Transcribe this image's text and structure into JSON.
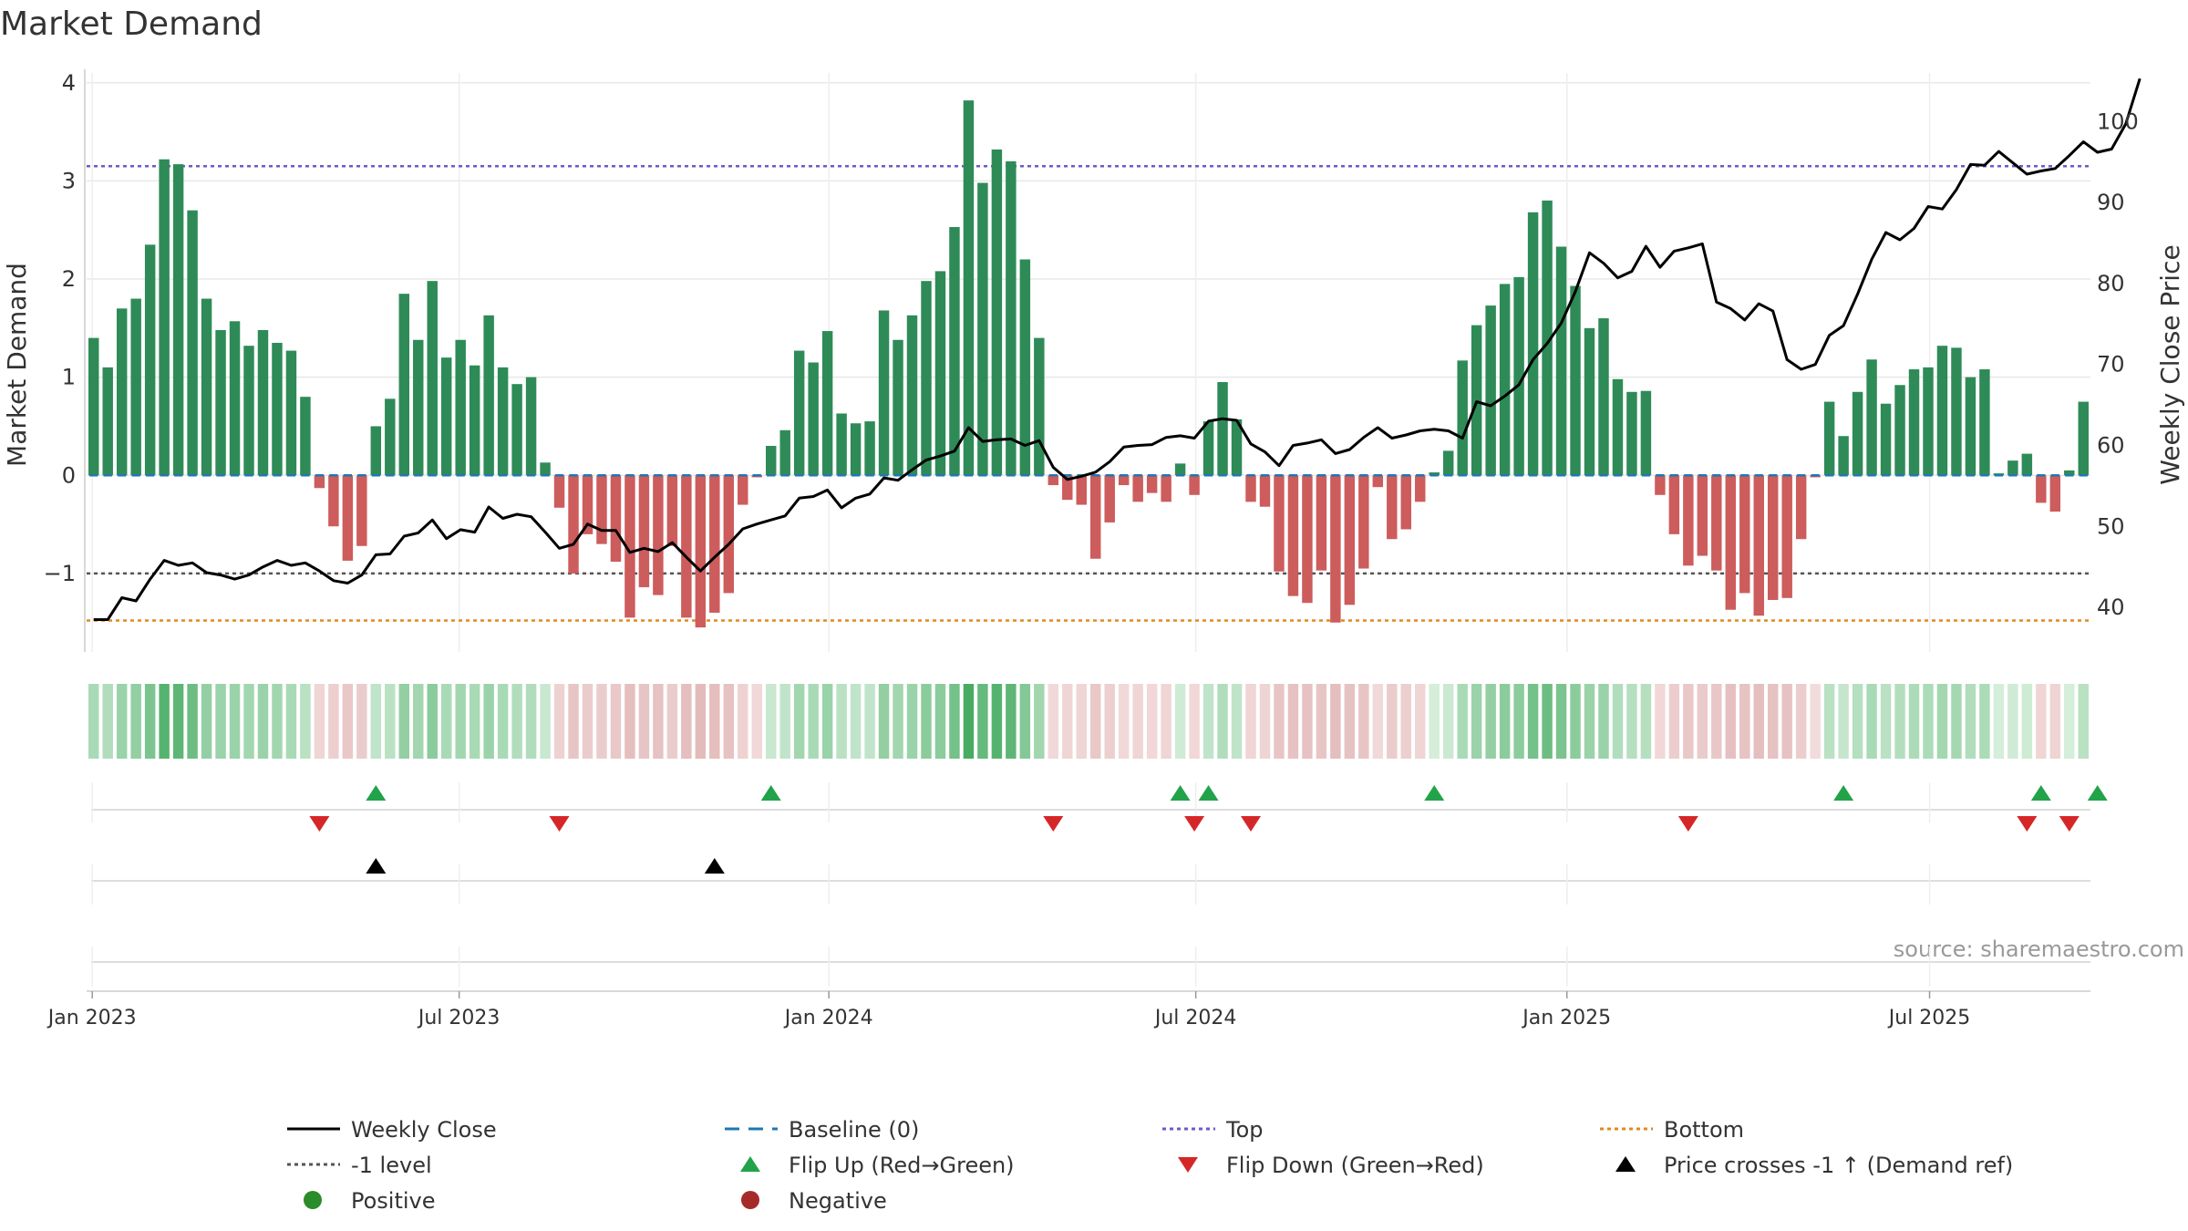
{
  "chart_data": {
    "type": "bar",
    "title": "Market Demand",
    "ylabel_left": "Market Demand",
    "ylabel_right": "Weekly Close Price",
    "ylim_left": [
      -1.8,
      4.1
    ],
    "ylim_right": [
      34.5,
      106
    ],
    "yticks_left": [
      -1,
      0,
      1,
      2,
      3,
      4
    ],
    "ytick_labels_left": [
      "−1",
      "0",
      "1",
      "2",
      "3",
      "4"
    ],
    "yticks_right": [
      40,
      50,
      60,
      70,
      80,
      90,
      100
    ],
    "ytick_labels_right": [
      "40",
      "50",
      "60",
      "70",
      "80",
      "90",
      "100"
    ],
    "x_dates": [
      "Jan 2023",
      "Jul 2023",
      "Jan 2024",
      "Jul 2024",
      "Jan 2025",
      "Jul 2025"
    ],
    "x_date_weeks": [
      0.4,
      26.4,
      52.6,
      78.6,
      104.9,
      130.6
    ],
    "top_level": 3.15,
    "bottom_level": -1.48,
    "minus_one_level": -1,
    "baseline": 0,
    "demand": [
      1.4,
      1.1,
      1.7,
      1.8,
      2.35,
      3.22,
      3.17,
      2.7,
      1.8,
      1.48,
      1.57,
      1.32,
      1.48,
      1.35,
      1.27,
      0.8,
      -0.13,
      -0.52,
      -0.87,
      -0.72,
      0.5,
      0.78,
      1.85,
      1.38,
      1.98,
      1.2,
      1.38,
      1.12,
      1.63,
      1.1,
      0.93,
      1.0,
      0.13,
      -0.33,
      -1.0,
      -0.6,
      -0.7,
      -0.88,
      -1.45,
      -1.14,
      -1.22,
      -0.72,
      -1.45,
      -1.55,
      -1.4,
      -1.2,
      -0.3,
      -0.02,
      0.3,
      0.46,
      1.27,
      1.15,
      1.47,
      0.63,
      0.53,
      0.55,
      1.68,
      1.38,
      1.63,
      1.98,
      2.08,
      2.53,
      3.82,
      2.98,
      3.32,
      3.2,
      2.2,
      1.4,
      -0.1,
      -0.25,
      -0.3,
      -0.85,
      -0.48,
      -0.1,
      -0.27,
      -0.18,
      -0.27,
      0.12,
      -0.2,
      0.55,
      0.95,
      0.57,
      -0.27,
      -0.32,
      -0.98,
      -1.23,
      -1.3,
      -0.97,
      -1.5,
      -1.32,
      -0.95,
      -0.12,
      -0.65,
      -0.55,
      -0.27,
      0.03,
      0.25,
      1.17,
      1.53,
      1.73,
      1.95,
      2.02,
      2.68,
      2.8,
      2.33,
      1.93,
      1.5,
      1.6,
      0.98,
      0.85,
      0.86,
      -0.2,
      -0.6,
      -0.92,
      -0.82,
      -0.97,
      -1.37,
      -1.2,
      -1.43,
      -1.27,
      -1.25,
      -0.65,
      -0.02,
      0.75,
      0.4,
      0.85,
      1.18,
      0.73,
      0.92,
      1.08,
      1.1,
      1.32,
      1.3,
      1.0,
      1.08,
      0.02,
      0.15,
      0.22,
      -0.28,
      -0.37,
      0.05,
      0.75
    ],
    "price": [
      38.5,
      38.5,
      41.2,
      40.8,
      43.5,
      45.8,
      45.2,
      45.5,
      44.3,
      44,
      43.5,
      44,
      45,
      45.8,
      45.2,
      45.5,
      44.5,
      43.3,
      43,
      44,
      46.5,
      46.6,
      48.8,
      49.2,
      50.8,
      48.5,
      49.6,
      49.3,
      52.4,
      51,
      51.5,
      51.2,
      49.3,
      47.3,
      47.8,
      50.3,
      49.5,
      49.5,
      46.8,
      47.3,
      46.9,
      48,
      46.2,
      44.5,
      46.2,
      47.8,
      49.7,
      50.3,
      50.8,
      51.3,
      53.5,
      53.7,
      54.5,
      52.3,
      53.5,
      54,
      56,
      55.7,
      57,
      58.2,
      58.7,
      59.3,
      62.2,
      60.5,
      60.7,
      60.8,
      60,
      60.6,
      57.3,
      55.8,
      56.2,
      56.7,
      58,
      59.8,
      60,
      60.1,
      61,
      61.2,
      60.9,
      63,
      63.3,
      63.1,
      60.2,
      59.2,
      57.5,
      60,
      60.3,
      60.7,
      59,
      59.5,
      61,
      62.2,
      60.9,
      61.3,
      61.8,
      62,
      61.8,
      60.9,
      65.4,
      64.9,
      66.1,
      67.5,
      70.6,
      72.6,
      75.1,
      79,
      83.8,
      82.5,
      80.7,
      81.5,
      84.6,
      82,
      84,
      84.4,
      84.9,
      77.7,
      76.9,
      75.5,
      77.5,
      76.6,
      70.6,
      69.4,
      70,
      73.6,
      74.8,
      78.7,
      83,
      86.3,
      85.4,
      86.8,
      89.5,
      89.2,
      91.6,
      94.7,
      94.6,
      96.3,
      94.9,
      93.5,
      93.9,
      94.2,
      95.8,
      97.5,
      96.2,
      96.6,
      99.7,
      105.3
    ],
    "heat_strength": [
      0.3,
      0.25,
      0.4,
      0.45,
      0.6,
      0.85,
      0.8,
      0.7,
      0.45,
      0.4,
      0.4,
      0.35,
      0.4,
      0.35,
      0.3,
      0.2,
      0.1,
      0.2,
      0.3,
      0.25,
      0.15,
      0.2,
      0.45,
      0.35,
      0.5,
      0.3,
      0.35,
      0.3,
      0.4,
      0.3,
      0.25,
      0.25,
      0.1,
      0.15,
      0.35,
      0.25,
      0.25,
      0.3,
      0.45,
      0.35,
      0.4,
      0.25,
      0.45,
      0.5,
      0.45,
      0.4,
      0.15,
      0.05,
      0.1,
      0.15,
      0.35,
      0.3,
      0.4,
      0.2,
      0.15,
      0.15,
      0.45,
      0.35,
      0.4,
      0.5,
      0.5,
      0.65,
      0.95,
      0.75,
      0.85,
      0.8,
      0.55,
      0.35,
      0.05,
      0.1,
      0.1,
      0.3,
      0.2,
      0.05,
      0.1,
      0.08,
      0.1,
      0.05,
      0.08,
      0.15,
      0.25,
      0.15,
      0.1,
      0.12,
      0.35,
      0.4,
      0.4,
      0.35,
      0.45,
      0.4,
      0.35,
      0.05,
      0.25,
      0.2,
      0.1,
      0.02,
      0.08,
      0.3,
      0.4,
      0.45,
      0.5,
      0.5,
      0.65,
      0.7,
      0.6,
      0.5,
      0.4,
      0.4,
      0.25,
      0.22,
      0.22,
      0.08,
      0.22,
      0.3,
      0.28,
      0.32,
      0.42,
      0.38,
      0.45,
      0.4,
      0.4,
      0.22,
      0.02,
      0.2,
      0.12,
      0.22,
      0.3,
      0.2,
      0.24,
      0.28,
      0.28,
      0.34,
      0.33,
      0.25,
      0.28,
      0.02,
      0.05,
      0.06,
      0.1,
      0.12,
      0.02,
      0.2
    ],
    "flip_up_weeks": [
      20,
      48,
      77,
      79,
      95,
      124,
      138,
      142
    ],
    "flip_down_weeks": [
      16,
      33,
      68,
      78,
      82,
      113,
      137,
      140
    ],
    "price_cross_weeks": [
      20,
      44
    ],
    "source_text": "source: sharemaestro.com",
    "colors": {
      "positive": "#2e8b57",
      "negative": "#cd5c5c",
      "price_line": "#000000",
      "baseline": "#1f77b4",
      "top": "#6a5acd",
      "bottom": "#e08a1e",
      "minus_one": "#555555",
      "flip_up": "#22a34a",
      "flip_down": "#d62728",
      "cross": "#000000",
      "positive_dot": "#2a8c2a",
      "negative_dot": "#a52a2a"
    },
    "legend": [
      {
        "label": "Weekly Close",
        "kind": "line-solid",
        "color": "#000000"
      },
      {
        "label": "Baseline (0)",
        "kind": "line-dash",
        "color": "#1f77b4"
      },
      {
        "label": "Top",
        "kind": "line-dot",
        "color": "#6a5acd"
      },
      {
        "label": "Bottom",
        "kind": "line-dot",
        "color": "#e08a1e"
      },
      {
        "label": "-1 level",
        "kind": "line-dot",
        "color": "#555555"
      },
      {
        "label": "Flip Up (Red→Green)",
        "kind": "tri-up",
        "color": "#22a34a"
      },
      {
        "label": "Flip Down (Green→Red)",
        "kind": "tri-down",
        "color": "#d62728"
      },
      {
        "label": "Price crosses -1 ↑ (Demand ref)",
        "kind": "tri-up",
        "color": "#000000"
      },
      {
        "label": "Positive",
        "kind": "dot",
        "color": "#2a8c2a"
      },
      {
        "label": "Negative",
        "kind": "dot",
        "color": "#a52a2a"
      }
    ]
  }
}
